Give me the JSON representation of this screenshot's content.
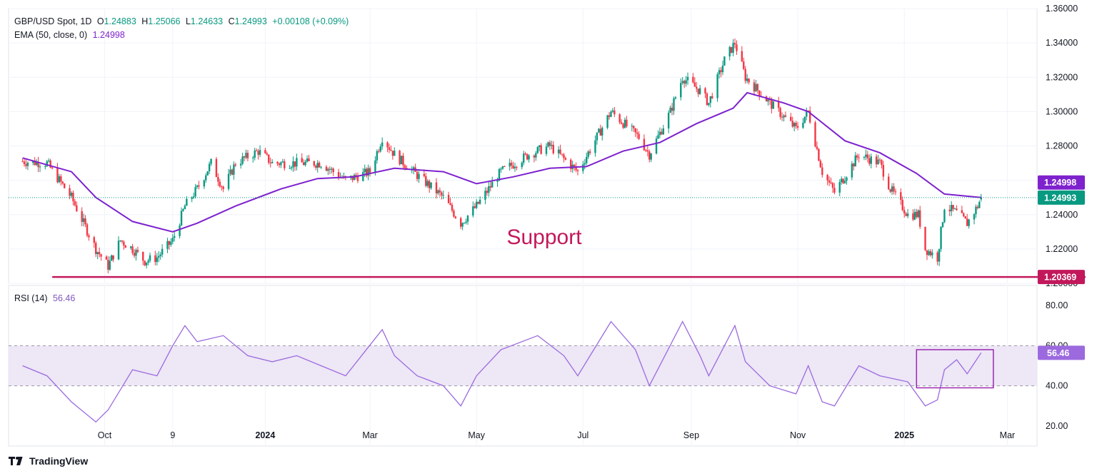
{
  "legend": {
    "symbol": "GBP/USD Spot, 1D",
    "open_label": "O",
    "open": "1.24883",
    "high_label": "H",
    "high": "1.25066",
    "low_label": "L",
    "low": "1.24633",
    "close_label": "C",
    "close": "1.24993",
    "change": "+0.00108 (+0.09%)",
    "ema_label": "EMA (50, close, 0)",
    "ema_value": "1.24998",
    "rsi_label": "RSI (14)",
    "rsi_value": "56.46"
  },
  "brand": "TradingView",
  "annotation": "Support",
  "colors": {
    "up": "#089981",
    "down": "#f23645",
    "ema": "#7e22ce",
    "rsi": "#9c6ade",
    "support": "#c2185b",
    "rsi_band": "#ede7f6",
    "box": "#9c27b0"
  },
  "chart_data": [
    {
      "type": "candlestick",
      "title": "GBP/USD Spot, 1D",
      "ylim": [
        1.2,
        1.36
      ],
      "y_ticks": [
        "1.36000",
        "1.34000",
        "1.32000",
        "1.30000",
        "1.28000",
        "1.26000",
        "1.24000",
        "1.22000",
        "1.20000"
      ],
      "x_ticks": [
        {
          "label": "Oct",
          "date": "2023-10-01"
        },
        {
          "label": "9",
          "date": "2023-11-09"
        },
        {
          "label": "2024",
          "date": "2024-01-01"
        },
        {
          "label": "Mar",
          "date": "2024-03-01"
        },
        {
          "label": "May",
          "date": "2024-05-01"
        },
        {
          "label": "Jul",
          "date": "2024-07-01"
        },
        {
          "label": "Sep",
          "date": "2024-09-01"
        },
        {
          "label": "Nov",
          "date": "2024-11-01"
        },
        {
          "label": "2025",
          "date": "2025-01-01"
        },
        {
          "label": "Mar",
          "date": "2025-03-01"
        }
      ],
      "close_series": [
        [
          "2023-08-15",
          1.271
        ],
        [
          "2023-08-29",
          1.27
        ],
        [
          "2023-09-12",
          1.25
        ],
        [
          "2023-09-26",
          1.22
        ],
        [
          "2023-10-03",
          1.21
        ],
        [
          "2023-10-10",
          1.225
        ],
        [
          "2023-10-17",
          1.22
        ],
        [
          "2023-10-24",
          1.213
        ],
        [
          "2023-10-31",
          1.215
        ],
        [
          "2023-11-09",
          1.225
        ],
        [
          "2023-11-16",
          1.245
        ],
        [
          "2023-11-23",
          1.255
        ],
        [
          "2023-12-01",
          1.27
        ],
        [
          "2023-12-08",
          1.255
        ],
        [
          "2023-12-15",
          1.27
        ],
        [
          "2023-12-28",
          1.277
        ],
        [
          "2024-01-05",
          1.27
        ],
        [
          "2024-01-19",
          1.27
        ],
        [
          "2024-02-02",
          1.27
        ],
        [
          "2024-02-16",
          1.26
        ],
        [
          "2024-03-01",
          1.265
        ],
        [
          "2024-03-08",
          1.285
        ],
        [
          "2024-03-15",
          1.275
        ],
        [
          "2024-03-28",
          1.263
        ],
        [
          "2024-04-12",
          1.25
        ],
        [
          "2024-04-22",
          1.235
        ],
        [
          "2024-05-01",
          1.245
        ],
        [
          "2024-05-15",
          1.265
        ],
        [
          "2024-05-31",
          1.275
        ],
        [
          "2024-06-12",
          1.28
        ],
        [
          "2024-06-28",
          1.265
        ],
        [
          "2024-07-17",
          1.3
        ],
        [
          "2024-08-02",
          1.285
        ],
        [
          "2024-08-08",
          1.275
        ],
        [
          "2024-08-20",
          1.3
        ],
        [
          "2024-08-27",
          1.32
        ],
        [
          "2024-09-06",
          1.312
        ],
        [
          "2024-09-11",
          1.305
        ],
        [
          "2024-09-20",
          1.33
        ],
        [
          "2024-09-26",
          1.34
        ],
        [
          "2024-10-02",
          1.32
        ],
        [
          "2024-10-16",
          1.305
        ],
        [
          "2024-10-31",
          1.29
        ],
        [
          "2024-11-07",
          1.3
        ],
        [
          "2024-11-15",
          1.265
        ],
        [
          "2024-11-22",
          1.253
        ],
        [
          "2024-12-06",
          1.275
        ],
        [
          "2024-12-18",
          1.27
        ],
        [
          "2024-12-24",
          1.255
        ],
        [
          "2025-01-03",
          1.24
        ],
        [
          "2025-01-09",
          1.24
        ],
        [
          "2025-01-13",
          1.22
        ],
        [
          "2025-01-20",
          1.215
        ],
        [
          "2025-01-24",
          1.245
        ],
        [
          "2025-01-31",
          1.241
        ],
        [
          "2025-02-06",
          1.235
        ],
        [
          "2025-02-12",
          1.245
        ],
        [
          "2025-02-14",
          1.24993
        ]
      ],
      "ema_series": [
        [
          "2023-08-15",
          1.273
        ],
        [
          "2023-09-12",
          1.265
        ],
        [
          "2023-09-26",
          1.25
        ],
        [
          "2023-10-17",
          1.236
        ],
        [
          "2023-11-09",
          1.23
        ],
        [
          "2023-11-23",
          1.235
        ],
        [
          "2023-12-15",
          1.245
        ],
        [
          "2024-01-10",
          1.255
        ],
        [
          "2024-01-31",
          1.261
        ],
        [
          "2024-02-21",
          1.262
        ],
        [
          "2024-03-15",
          1.267
        ],
        [
          "2024-04-12",
          1.265
        ],
        [
          "2024-05-01",
          1.258
        ],
        [
          "2024-05-22",
          1.262
        ],
        [
          "2024-06-12",
          1.267
        ],
        [
          "2024-07-03",
          1.268
        ],
        [
          "2024-07-24",
          1.277
        ],
        [
          "2024-08-14",
          1.282
        ],
        [
          "2024-09-04",
          1.293
        ],
        [
          "2024-09-25",
          1.302
        ],
        [
          "2024-10-03",
          1.311
        ],
        [
          "2024-10-24",
          1.305
        ],
        [
          "2024-11-07",
          1.3
        ],
        [
          "2024-11-28",
          1.283
        ],
        [
          "2024-12-18",
          1.276
        ],
        [
          "2025-01-08",
          1.264
        ],
        [
          "2025-01-24",
          1.252
        ],
        [
          "2025-02-14",
          1.24998
        ]
      ],
      "ema_last": 1.24998,
      "support_level": 1.20369,
      "price_labels": [
        "1.24998",
        "1.24993",
        "1.20369"
      ]
    },
    {
      "type": "line",
      "title": "RSI (14)",
      "ylim": [
        10,
        90
      ],
      "y_ticks": [
        "80.00",
        "60.00",
        "40.00",
        "20.00"
      ],
      "band": [
        40,
        60
      ],
      "rsi_series": [
        [
          "2023-08-15",
          50
        ],
        [
          "2023-08-29",
          45
        ],
        [
          "2023-09-12",
          32
        ],
        [
          "2023-09-26",
          22
        ],
        [
          "2023-10-03",
          28
        ],
        [
          "2023-10-17",
          48
        ],
        [
          "2023-10-31",
          45
        ],
        [
          "2023-11-09",
          60
        ],
        [
          "2023-11-16",
          70
        ],
        [
          "2023-11-23",
          62
        ],
        [
          "2023-12-08",
          65
        ],
        [
          "2023-12-22",
          55
        ],
        [
          "2024-01-05",
          52
        ],
        [
          "2024-01-19",
          55
        ],
        [
          "2024-02-02",
          50
        ],
        [
          "2024-02-16",
          45
        ],
        [
          "2024-03-08",
          68
        ],
        [
          "2024-03-15",
          55
        ],
        [
          "2024-03-28",
          45
        ],
        [
          "2024-04-12",
          40
        ],
        [
          "2024-04-22",
          30
        ],
        [
          "2024-05-01",
          45
        ],
        [
          "2024-05-15",
          58
        ],
        [
          "2024-06-05",
          65
        ],
        [
          "2024-06-20",
          55
        ],
        [
          "2024-06-28",
          45
        ],
        [
          "2024-07-17",
          72
        ],
        [
          "2024-07-31",
          58
        ],
        [
          "2024-08-08",
          40
        ],
        [
          "2024-08-27",
          72
        ],
        [
          "2024-09-06",
          55
        ],
        [
          "2024-09-11",
          45
        ],
        [
          "2024-09-26",
          70
        ],
        [
          "2024-10-02",
          52
        ],
        [
          "2024-10-16",
          40
        ],
        [
          "2024-10-31",
          36
        ],
        [
          "2024-11-07",
          50
        ],
        [
          "2024-11-15",
          32
        ],
        [
          "2024-11-22",
          30
        ],
        [
          "2024-12-06",
          50
        ],
        [
          "2024-12-18",
          45
        ],
        [
          "2025-01-03",
          42
        ],
        [
          "2025-01-13",
          30
        ],
        [
          "2025-01-20",
          33
        ],
        [
          "2025-01-24",
          48
        ],
        [
          "2025-01-31",
          53
        ],
        [
          "2025-02-06",
          46
        ],
        [
          "2025-02-14",
          56.46
        ]
      ],
      "rsi_last": 56.46,
      "highlight_box": {
        "date_start": "2025-01-08",
        "date_end": "2025-02-21",
        "rsi_low": 39,
        "rsi_high": 58
      }
    }
  ]
}
